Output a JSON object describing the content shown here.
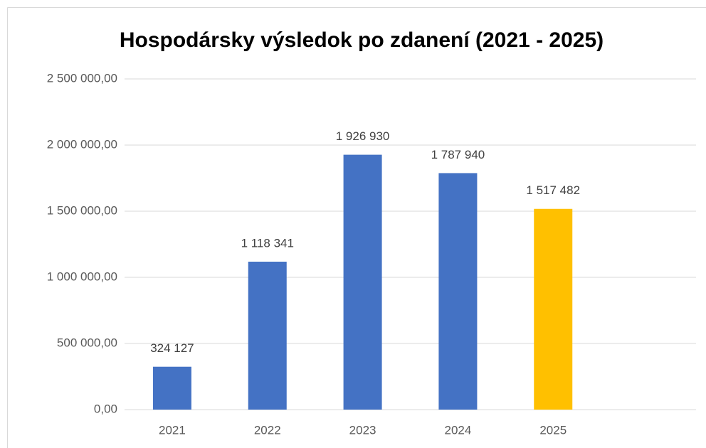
{
  "chart_data": {
    "type": "bar",
    "title": "Hospodársky výsledok po zdanení (2021 - 2025)",
    "categories": [
      "2021",
      "2022",
      "2023",
      "2024",
      "2025",
      null
    ],
    "values": [
      324127,
      1118341,
      1926930,
      1787940,
      1517482,
      null
    ],
    "value_labels": [
      "324 127",
      "1 118 341",
      "1 926 930",
      "1 787 940",
      "1 517 482",
      null
    ],
    "colors": [
      "#4472c4",
      "#4472c4",
      "#4472c4",
      "#4472c4",
      "#ffc000",
      null
    ],
    "ylim": [
      0,
      2500000
    ],
    "yticks": [
      {
        "value": 0,
        "label": "0,00"
      },
      {
        "value": 500000,
        "label": "500 000,00"
      },
      {
        "value": 1000000,
        "label": "1 000 000,00"
      },
      {
        "value": 1500000,
        "label": "1 500 000,00"
      },
      {
        "value": 2000000,
        "label": "2 000 000,00"
      },
      {
        "value": 2500000,
        "label": "2 500 000,00"
      }
    ],
    "grid": true
  }
}
